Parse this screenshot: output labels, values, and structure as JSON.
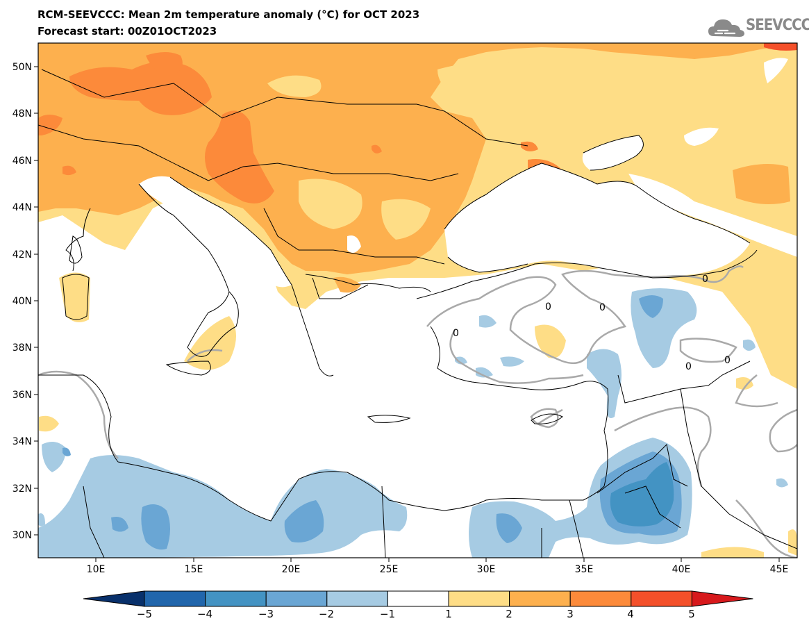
{
  "header": {
    "title": "RCM-SEEVCCC: Mean 2m temperature anomaly (°C) for OCT 2023",
    "subtitle": "Forecast start: 00Z01OCT2023"
  },
  "logo": {
    "text": "SEEVCCC"
  },
  "map": {
    "lon_labels": [
      "10E",
      "15E",
      "20E",
      "25E",
      "30E",
      "35E",
      "40E",
      "45E"
    ],
    "lat_labels": [
      "50N",
      "48N",
      "46N",
      "44N",
      "42N",
      "40N",
      "38N",
      "36N",
      "34N",
      "32N",
      "30N"
    ],
    "contour_labels": [
      "0",
      "0",
      "0",
      "0",
      "0",
      "0"
    ]
  },
  "colorbar": {
    "labels": [
      "−5",
      "−4",
      "−3",
      "−2",
      "−1",
      "1",
      "2",
      "3",
      "4",
      "5"
    ],
    "colors": [
      "#08306b",
      "#2166ac",
      "#4393c3",
      "#6aa6d4",
      "#a6cbe3",
      "#ffffff",
      "#fedd86",
      "#fdb04e",
      "#fc8a3a",
      "#f4502a",
      "#d7191c"
    ]
  }
}
